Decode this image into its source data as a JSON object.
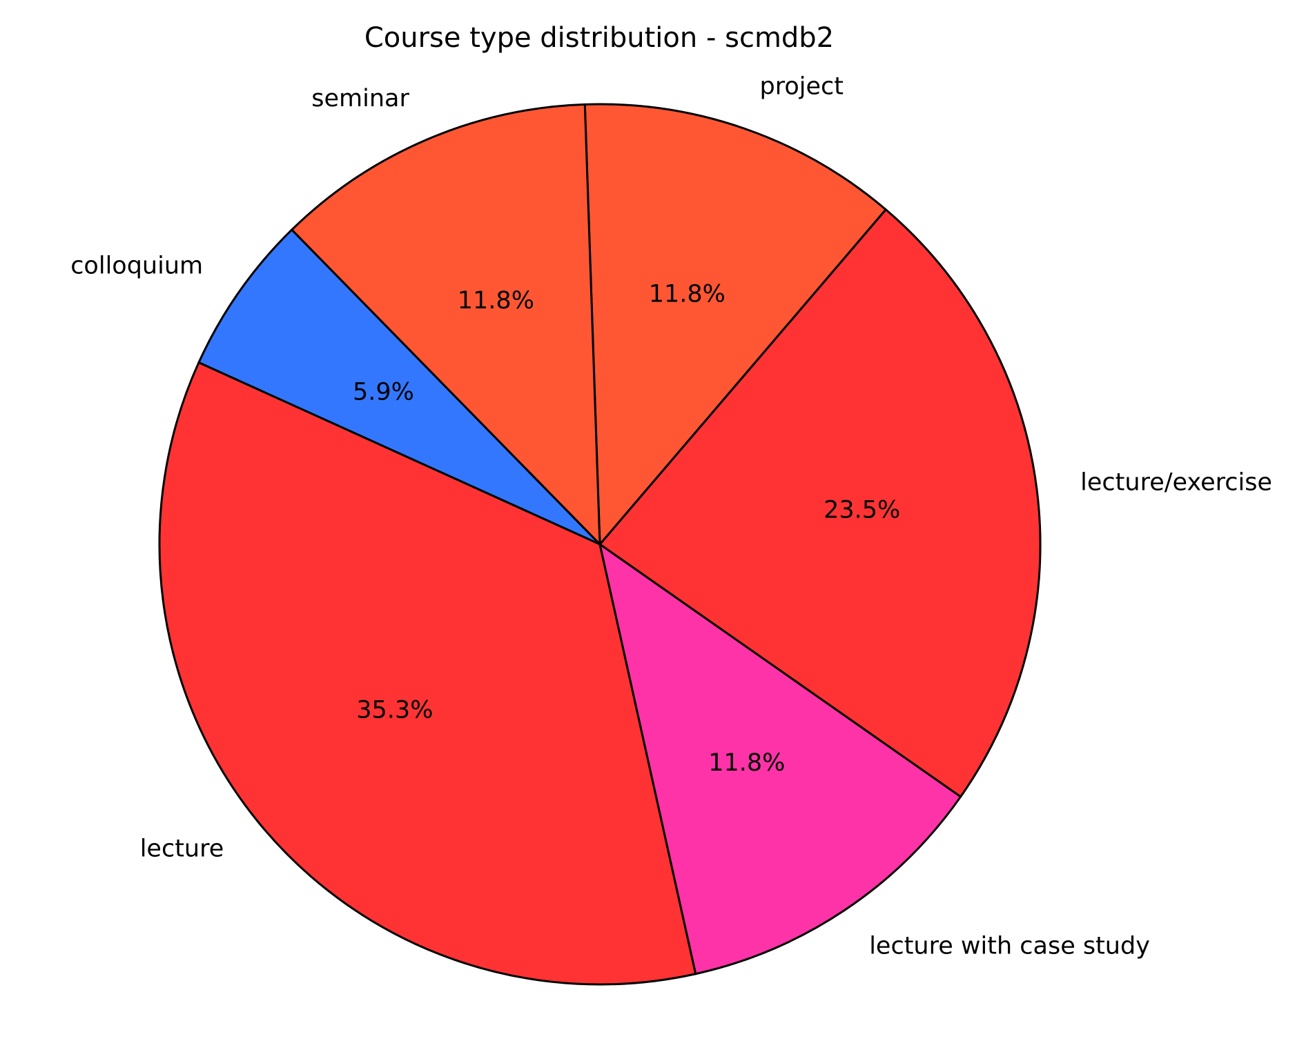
{
  "chart_data": {
    "type": "pie",
    "title": "Course type distribution - scmdb2",
    "legend": "none",
    "slices": [
      {
        "label": "lecture/exercise",
        "value": 23.5,
        "pct_label": "23.5%",
        "color": "#ff3333"
      },
      {
        "label": "project",
        "value": 11.8,
        "pct_label": "11.8%",
        "color": "#ff5733"
      },
      {
        "label": "seminar",
        "value": 11.8,
        "pct_label": "11.8%",
        "color": "#ff5733"
      },
      {
        "label": "colloquium",
        "value": 5.9,
        "pct_label": "5.9%",
        "color": "#3377ff"
      },
      {
        "label": "lecture",
        "value": 35.3,
        "pct_label": "35.3%",
        "color": "#ff3333"
      },
      {
        "label": "lecture with case study",
        "value": 11.8,
        "pct_label": "11.8%",
        "color": "#ff33a8"
      }
    ]
  }
}
